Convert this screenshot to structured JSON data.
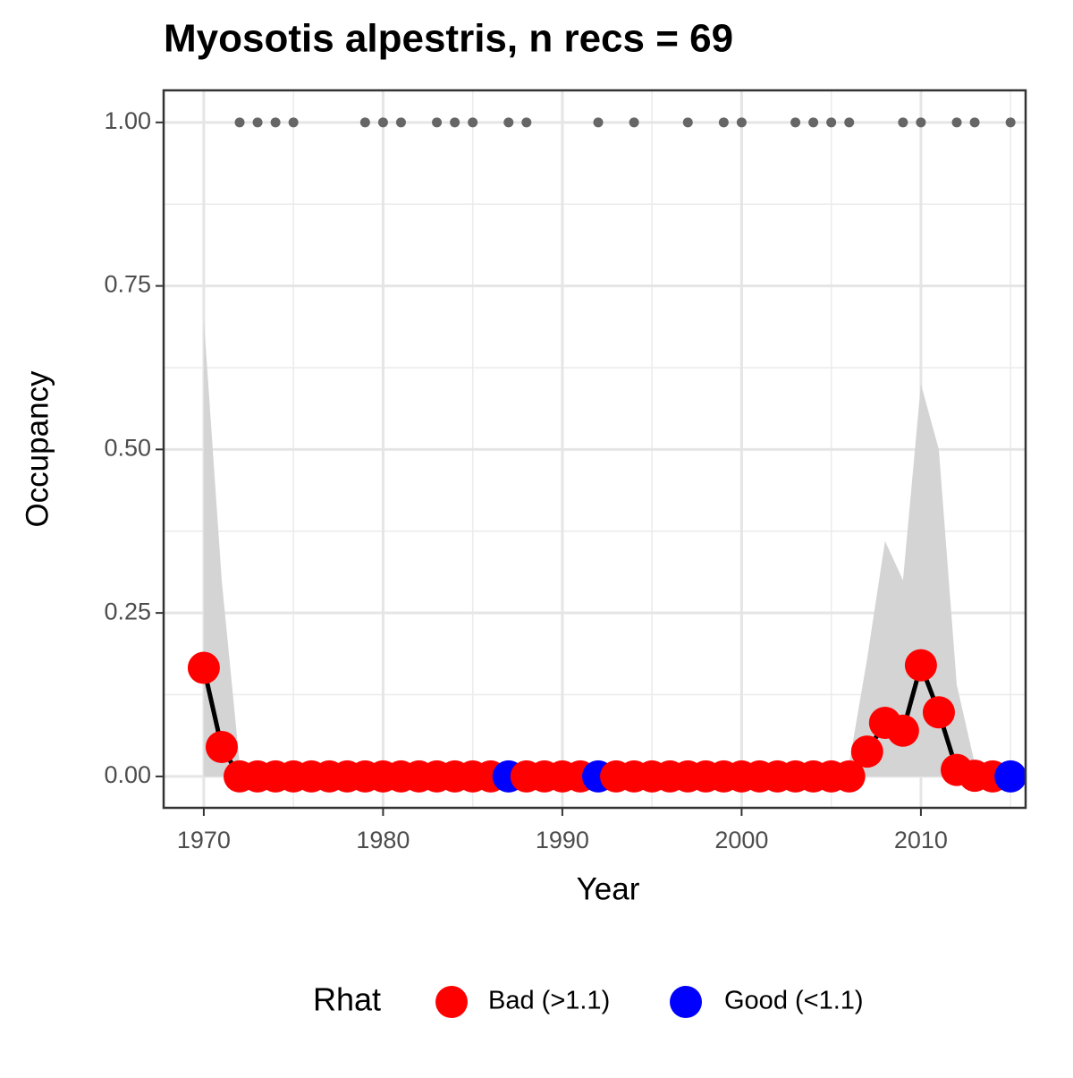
{
  "chart_data": {
    "type": "line",
    "title": "Myosotis alpestris, n recs = 69",
    "xlabel": "Year",
    "ylabel": "Occupancy",
    "x": [
      1970,
      1971,
      1972,
      1973,
      1974,
      1975,
      1976,
      1977,
      1978,
      1979,
      1980,
      1981,
      1982,
      1983,
      1984,
      1985,
      1986,
      1987,
      1988,
      1989,
      1990,
      1991,
      1992,
      1993,
      1994,
      1995,
      1996,
      1997,
      1998,
      1999,
      2000,
      2001,
      2002,
      2003,
      2004,
      2005,
      2006,
      2007,
      2008,
      2009,
      2010,
      2011,
      2012,
      2013,
      2014,
      2015
    ],
    "values": [
      0.166,
      0.045,
      0,
      0,
      0,
      0,
      0,
      0,
      0,
      0,
      0,
      0,
      0,
      0,
      0,
      0,
      0,
      0,
      0,
      0,
      0,
      0,
      0,
      0,
      0,
      0,
      0,
      0,
      0,
      0,
      0,
      0,
      0,
      0,
      0,
      0,
      0,
      0.038,
      0.082,
      0.07,
      0.17,
      0.098,
      0.01,
      0.001,
      0,
      0
    ],
    "lower": [
      0,
      0,
      0,
      0,
      0,
      0,
      0,
      0,
      0,
      0,
      0,
      0,
      0,
      0,
      0,
      0,
      0,
      0,
      0,
      0,
      0,
      0,
      0,
      0,
      0,
      0,
      0,
      0,
      0,
      0,
      0,
      0,
      0,
      0,
      0,
      0,
      0,
      0,
      0,
      0,
      0,
      0,
      0,
      0,
      0,
      0
    ],
    "upper": [
      0.7,
      0.3,
      0.02,
      0,
      0,
      0,
      0,
      0,
      0,
      0,
      0,
      0,
      0,
      0,
      0,
      0,
      0,
      0,
      0,
      0,
      0,
      0,
      0,
      0,
      0,
      0,
      0,
      0,
      0,
      0,
      0,
      0,
      0,
      0,
      0,
      0,
      0.02,
      0.18,
      0.36,
      0.3,
      0.6,
      0.5,
      0.14,
      0.02,
      0,
      0
    ],
    "point_colors": [
      "red",
      "red",
      "red",
      "red",
      "red",
      "red",
      "red",
      "red",
      "red",
      "red",
      "red",
      "red",
      "red",
      "red",
      "red",
      "red",
      "red",
      "blue",
      "red",
      "red",
      "red",
      "red",
      "blue",
      "red",
      "red",
      "red",
      "red",
      "red",
      "red",
      "red",
      "red",
      "red",
      "red",
      "red",
      "red",
      "red",
      "red",
      "red",
      "red",
      "red",
      "red",
      "red",
      "red",
      "red",
      "red",
      "blue"
    ],
    "line_color": "black",
    "band_color": "#d4d4d4",
    "records": {
      "color": "#666666",
      "x": [
        1972,
        1973,
        1974,
        1975,
        1979,
        1980,
        1981,
        1983,
        1984,
        1985,
        1987,
        1988,
        1992,
        1994,
        1997,
        1999,
        2000,
        2003,
        2004,
        2005,
        2006,
        2009,
        2010,
        2012,
        2013,
        2015
      ],
      "values": [
        1,
        1,
        1,
        1,
        1,
        1,
        1,
        1,
        1,
        1,
        1,
        1,
        1,
        1,
        1,
        1,
        1,
        1,
        1,
        1,
        1,
        1,
        1,
        1,
        1,
        1
      ]
    },
    "legend_title": "Rhat",
    "legend": [
      {
        "name": "Bad (>1.1)",
        "color": "red"
      },
      {
        "name": "Good (<1.1)",
        "color": "blue"
      }
    ],
    "legend_position": "bottom",
    "xlim": [
      1967.76,
      2015.84
    ],
    "ylim": [
      -0.048,
      1.049
    ],
    "xticks": [
      1970,
      1980,
      1990,
      2000,
      2010
    ],
    "yticks": [
      {
        "value": 0,
        "label": "0.00"
      },
      {
        "value": 0.25,
        "label": "0.25"
      },
      {
        "value": 0.5,
        "label": "0.50"
      },
      {
        "value": 0.75,
        "label": "0.75"
      },
      {
        "value": 1,
        "label": "1.00"
      }
    ],
    "grid": true,
    "minor_grid": true
  }
}
